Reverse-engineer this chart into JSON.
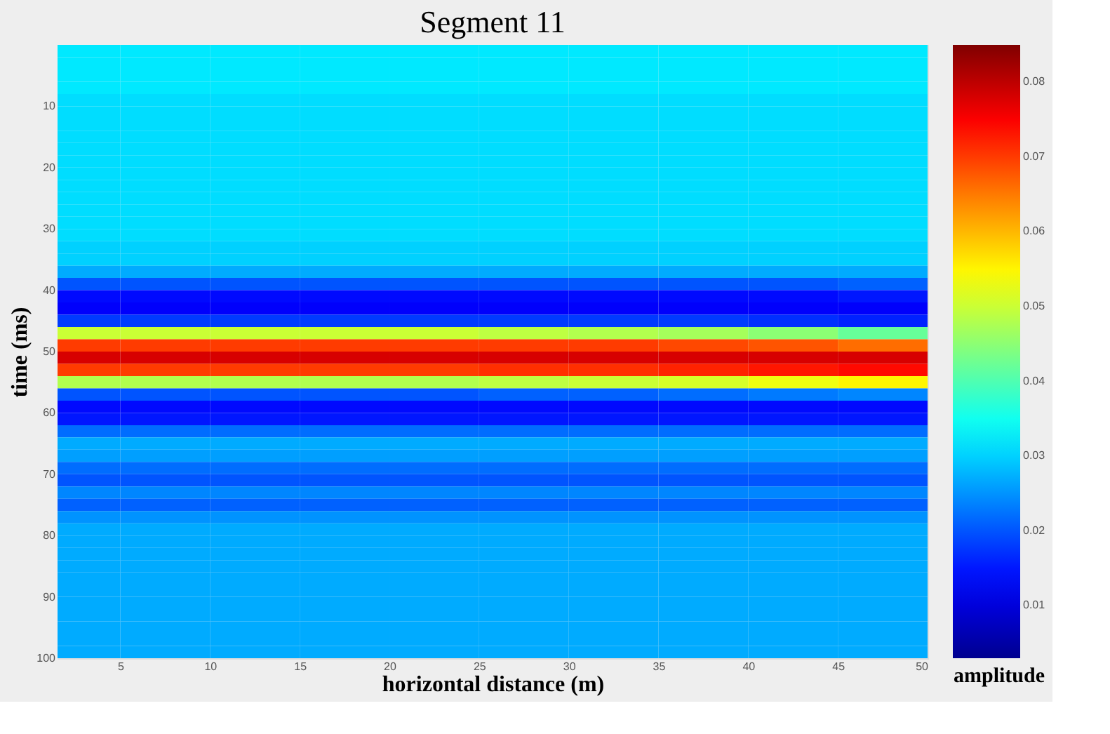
{
  "chart_data": {
    "type": "heatmap",
    "title": "Segment 11",
    "xlabel": "horizontal distance (m)",
    "ylabel": "time (ms)",
    "clabel": "amplitude",
    "x": [
      2.5,
      7.5,
      12.5,
      17.5,
      22.5,
      27.5,
      32.5,
      37.5,
      42.5,
      47.5
    ],
    "y": [
      1,
      3,
      5,
      7,
      9,
      11,
      13,
      15,
      17,
      19,
      21,
      23,
      25,
      27,
      29,
      31,
      33,
      35,
      37,
      39,
      41,
      43,
      45,
      47,
      49,
      51,
      53,
      55,
      57,
      59,
      61,
      63,
      65,
      67,
      69,
      71,
      73,
      75,
      77,
      79,
      81,
      83,
      85,
      87,
      89,
      91,
      93,
      95,
      97,
      99
    ],
    "cells": [
      [
        0.032,
        0.032,
        0.032,
        0.032,
        0.032,
        0.032,
        0.032,
        0.032,
        0.032,
        0.032
      ],
      [
        0.032,
        0.032,
        0.032,
        0.032,
        0.032,
        0.032,
        0.032,
        0.032,
        0.032,
        0.032
      ],
      [
        0.032,
        0.032,
        0.032,
        0.032,
        0.032,
        0.032,
        0.032,
        0.032,
        0.032,
        0.032
      ],
      [
        0.032,
        0.032,
        0.032,
        0.032,
        0.032,
        0.032,
        0.032,
        0.032,
        0.032,
        0.032
      ],
      [
        0.031,
        0.031,
        0.031,
        0.031,
        0.031,
        0.031,
        0.031,
        0.031,
        0.031,
        0.031
      ],
      [
        0.031,
        0.031,
        0.031,
        0.031,
        0.031,
        0.031,
        0.031,
        0.031,
        0.031,
        0.031
      ],
      [
        0.031,
        0.031,
        0.031,
        0.031,
        0.031,
        0.031,
        0.031,
        0.031,
        0.031,
        0.031
      ],
      [
        0.031,
        0.031,
        0.031,
        0.031,
        0.031,
        0.031,
        0.031,
        0.031,
        0.031,
        0.031
      ],
      [
        0.031,
        0.031,
        0.031,
        0.031,
        0.031,
        0.031,
        0.031,
        0.031,
        0.031,
        0.031
      ],
      [
        0.031,
        0.031,
        0.031,
        0.031,
        0.031,
        0.031,
        0.031,
        0.031,
        0.031,
        0.031
      ],
      [
        0.031,
        0.031,
        0.031,
        0.031,
        0.031,
        0.031,
        0.031,
        0.031,
        0.031,
        0.031
      ],
      [
        0.031,
        0.031,
        0.031,
        0.031,
        0.031,
        0.031,
        0.031,
        0.031,
        0.031,
        0.031
      ],
      [
        0.031,
        0.031,
        0.031,
        0.031,
        0.031,
        0.031,
        0.031,
        0.031,
        0.031,
        0.031
      ],
      [
        0.031,
        0.031,
        0.031,
        0.031,
        0.031,
        0.031,
        0.031,
        0.031,
        0.031,
        0.031
      ],
      [
        0.031,
        0.031,
        0.031,
        0.031,
        0.031,
        0.031,
        0.031,
        0.031,
        0.031,
        0.031
      ],
      [
        0.031,
        0.031,
        0.031,
        0.031,
        0.031,
        0.031,
        0.031,
        0.031,
        0.031,
        0.031
      ],
      [
        0.03,
        0.03,
        0.03,
        0.03,
        0.03,
        0.03,
        0.03,
        0.03,
        0.03,
        0.03
      ],
      [
        0.03,
        0.03,
        0.03,
        0.03,
        0.03,
        0.03,
        0.03,
        0.03,
        0.03,
        0.03
      ],
      [
        0.027,
        0.027,
        0.027,
        0.027,
        0.027,
        0.027,
        0.027,
        0.027,
        0.027,
        0.027
      ],
      [
        0.02,
        0.02,
        0.02,
        0.02,
        0.02,
        0.02,
        0.02,
        0.02,
        0.02,
        0.021
      ],
      [
        0.014,
        0.014,
        0.014,
        0.014,
        0.014,
        0.014,
        0.014,
        0.014,
        0.014,
        0.015
      ],
      [
        0.013,
        0.013,
        0.013,
        0.013,
        0.013,
        0.013,
        0.013,
        0.013,
        0.013,
        0.013
      ],
      [
        0.018,
        0.018,
        0.018,
        0.018,
        0.018,
        0.018,
        0.018,
        0.018,
        0.017,
        0.016
      ],
      [
        0.05,
        0.05,
        0.05,
        0.05,
        0.05,
        0.049,
        0.048,
        0.047,
        0.045,
        0.042
      ],
      [
        0.07,
        0.07,
        0.07,
        0.07,
        0.07,
        0.07,
        0.07,
        0.069,
        0.068,
        0.066
      ],
      [
        0.078,
        0.078,
        0.078,
        0.078,
        0.078,
        0.078,
        0.078,
        0.078,
        0.078,
        0.078
      ],
      [
        0.07,
        0.07,
        0.07,
        0.07,
        0.07,
        0.071,
        0.071,
        0.072,
        0.073,
        0.074
      ],
      [
        0.048,
        0.048,
        0.048,
        0.048,
        0.048,
        0.049,
        0.05,
        0.051,
        0.053,
        0.055
      ],
      [
        0.02,
        0.02,
        0.02,
        0.02,
        0.02,
        0.021,
        0.021,
        0.022,
        0.023,
        0.024
      ],
      [
        0.014,
        0.014,
        0.014,
        0.014,
        0.014,
        0.014,
        0.014,
        0.014,
        0.014,
        0.014
      ],
      [
        0.015,
        0.015,
        0.015,
        0.015,
        0.015,
        0.015,
        0.015,
        0.015,
        0.015,
        0.015
      ],
      [
        0.022,
        0.022,
        0.022,
        0.022,
        0.022,
        0.022,
        0.022,
        0.022,
        0.022,
        0.022
      ],
      [
        0.027,
        0.027,
        0.027,
        0.027,
        0.027,
        0.027,
        0.027,
        0.027,
        0.027,
        0.027
      ],
      [
        0.026,
        0.026,
        0.026,
        0.026,
        0.026,
        0.026,
        0.026,
        0.026,
        0.026,
        0.026
      ],
      [
        0.022,
        0.022,
        0.022,
        0.022,
        0.022,
        0.022,
        0.022,
        0.022,
        0.022,
        0.022
      ],
      [
        0.02,
        0.02,
        0.02,
        0.02,
        0.02,
        0.02,
        0.02,
        0.02,
        0.02,
        0.02
      ],
      [
        0.024,
        0.024,
        0.024,
        0.024,
        0.024,
        0.024,
        0.024,
        0.024,
        0.024,
        0.024
      ],
      [
        0.021,
        0.021,
        0.021,
        0.021,
        0.021,
        0.021,
        0.021,
        0.021,
        0.021,
        0.021
      ],
      [
        0.025,
        0.025,
        0.025,
        0.025,
        0.025,
        0.025,
        0.025,
        0.025,
        0.025,
        0.025
      ],
      [
        0.027,
        0.027,
        0.027,
        0.027,
        0.027,
        0.027,
        0.027,
        0.027,
        0.027,
        0.027
      ],
      [
        0.027,
        0.027,
        0.027,
        0.027,
        0.027,
        0.027,
        0.027,
        0.027,
        0.027,
        0.027
      ],
      [
        0.027,
        0.027,
        0.027,
        0.027,
        0.027,
        0.027,
        0.027,
        0.027,
        0.027,
        0.027
      ],
      [
        0.027,
        0.027,
        0.027,
        0.027,
        0.027,
        0.027,
        0.027,
        0.027,
        0.027,
        0.027
      ],
      [
        0.027,
        0.027,
        0.027,
        0.027,
        0.027,
        0.027,
        0.027,
        0.027,
        0.027,
        0.027
      ],
      [
        0.027,
        0.027,
        0.027,
        0.027,
        0.027,
        0.027,
        0.027,
        0.027,
        0.027,
        0.027
      ],
      [
        0.027,
        0.027,
        0.027,
        0.027,
        0.027,
        0.027,
        0.027,
        0.027,
        0.027,
        0.027
      ],
      [
        0.027,
        0.027,
        0.027,
        0.027,
        0.027,
        0.027,
        0.027,
        0.027,
        0.027,
        0.027
      ],
      [
        0.027,
        0.027,
        0.027,
        0.027,
        0.027,
        0.027,
        0.027,
        0.027,
        0.027,
        0.027
      ],
      [
        0.027,
        0.027,
        0.027,
        0.027,
        0.027,
        0.027,
        0.027,
        0.027,
        0.027,
        0.027
      ],
      [
        0.027,
        0.027,
        0.027,
        0.027,
        0.027,
        0.027,
        0.027,
        0.027,
        0.027,
        0.027
      ]
    ],
    "xlim": [
      1.5,
      50
    ],
    "xticks": [
      5,
      10,
      15,
      20,
      25,
      30,
      35,
      40,
      45,
      50
    ],
    "ylim": [
      100,
      0
    ],
    "yticks": [
      10,
      20,
      30,
      40,
      50,
      60,
      70,
      80,
      90,
      100
    ],
    "clim": [
      0.003,
      0.085
    ],
    "cticks": [
      0.01,
      0.02,
      0.03,
      0.04,
      0.05,
      0.06,
      0.07,
      0.08
    ],
    "grid": false
  }
}
